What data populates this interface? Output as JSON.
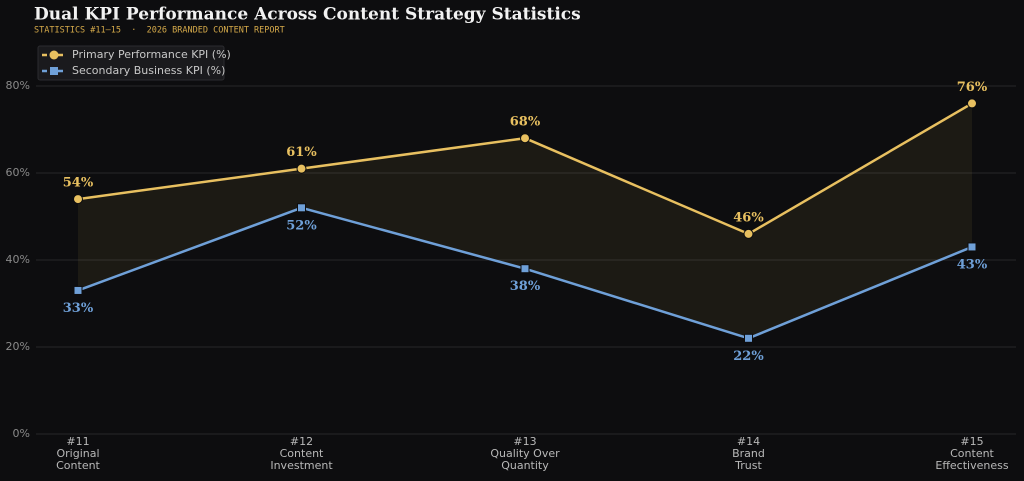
{
  "chart_data": {
    "type": "line",
    "title": "Dual KPI Performance Across Content Strategy Statistics",
    "subtitle": "STATISTICS #11–15  ·  2026 BRANDED CONTENT REPORT",
    "categories": [
      [
        "#11",
        "Original",
        "Content"
      ],
      [
        "#12",
        "Content",
        "Investment"
      ],
      [
        "#13",
        "Quality Over",
        "Quantity"
      ],
      [
        "#14",
        "Brand",
        "Trust"
      ],
      [
        "#15",
        "Content",
        "Effectiveness"
      ]
    ],
    "series": [
      {
        "name": "Primary Performance KPI (%)",
        "color": "#e8c060",
        "marker": "circle",
        "values": [
          54,
          61,
          68,
          46,
          76
        ],
        "value_labels": [
          "54%",
          "61%",
          "68%",
          "46%",
          "76%"
        ]
      },
      {
        "name": "Secondary Business KPI (%)",
        "color": "#6fa0d8",
        "marker": "square",
        "values": [
          33,
          52,
          38,
          22,
          43
        ],
        "value_labels": [
          "33%",
          "52%",
          "38%",
          "22%",
          "43%"
        ]
      }
    ],
    "ylim": [
      0,
      80
    ],
    "yticks": [
      {
        "value": 0,
        "label": "0%"
      },
      {
        "value": 20,
        "label": "20%"
      },
      {
        "value": 40,
        "label": "40%"
      },
      {
        "value": 60,
        "label": "60%"
      },
      {
        "value": 80,
        "label": "80%"
      }
    ],
    "grid": true,
    "legend": "upper left"
  }
}
